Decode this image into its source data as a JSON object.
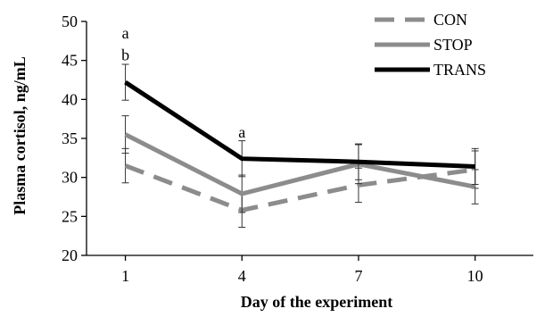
{
  "chart_data": {
    "type": "line",
    "title": "",
    "xlabel": "Day of the experiment",
    "ylabel": "Plasma cortisol, ng/mL",
    "x": [
      1,
      4,
      7,
      10
    ],
    "xticks": [
      "1",
      "4",
      "7",
      "10"
    ],
    "ylim": [
      20,
      50
    ],
    "yticks": [
      20,
      25,
      30,
      35,
      40,
      45,
      50
    ],
    "grid": false,
    "legend_position": "top-right",
    "series": [
      {
        "name": "CON",
        "values": [
          31.5,
          25.8,
          29.0,
          31.0
        ],
        "errors": [
          2.2,
          2.2,
          2.2,
          2.4
        ],
        "color": "#8c8c8c",
        "dash": "dashed"
      },
      {
        "name": "STOP",
        "values": [
          35.5,
          27.9,
          31.7,
          28.8
        ],
        "errors": [
          2.4,
          2.4,
          2.5,
          2.2
        ],
        "color": "#8c8c8c",
        "dash": "solid"
      },
      {
        "name": "TRANS",
        "values": [
          42.2,
          32.4,
          32.0,
          31.4
        ],
        "errors": [
          2.3,
          2.3,
          2.3,
          2.3
        ],
        "color": "#000000",
        "dash": "solid"
      }
    ],
    "annotations": [
      {
        "text": "a",
        "x": 1,
        "y": 48.5
      },
      {
        "text": "b",
        "x": 1,
        "y": 45.7
      },
      {
        "text": "a",
        "x": 4,
        "y": 35.8
      }
    ]
  }
}
